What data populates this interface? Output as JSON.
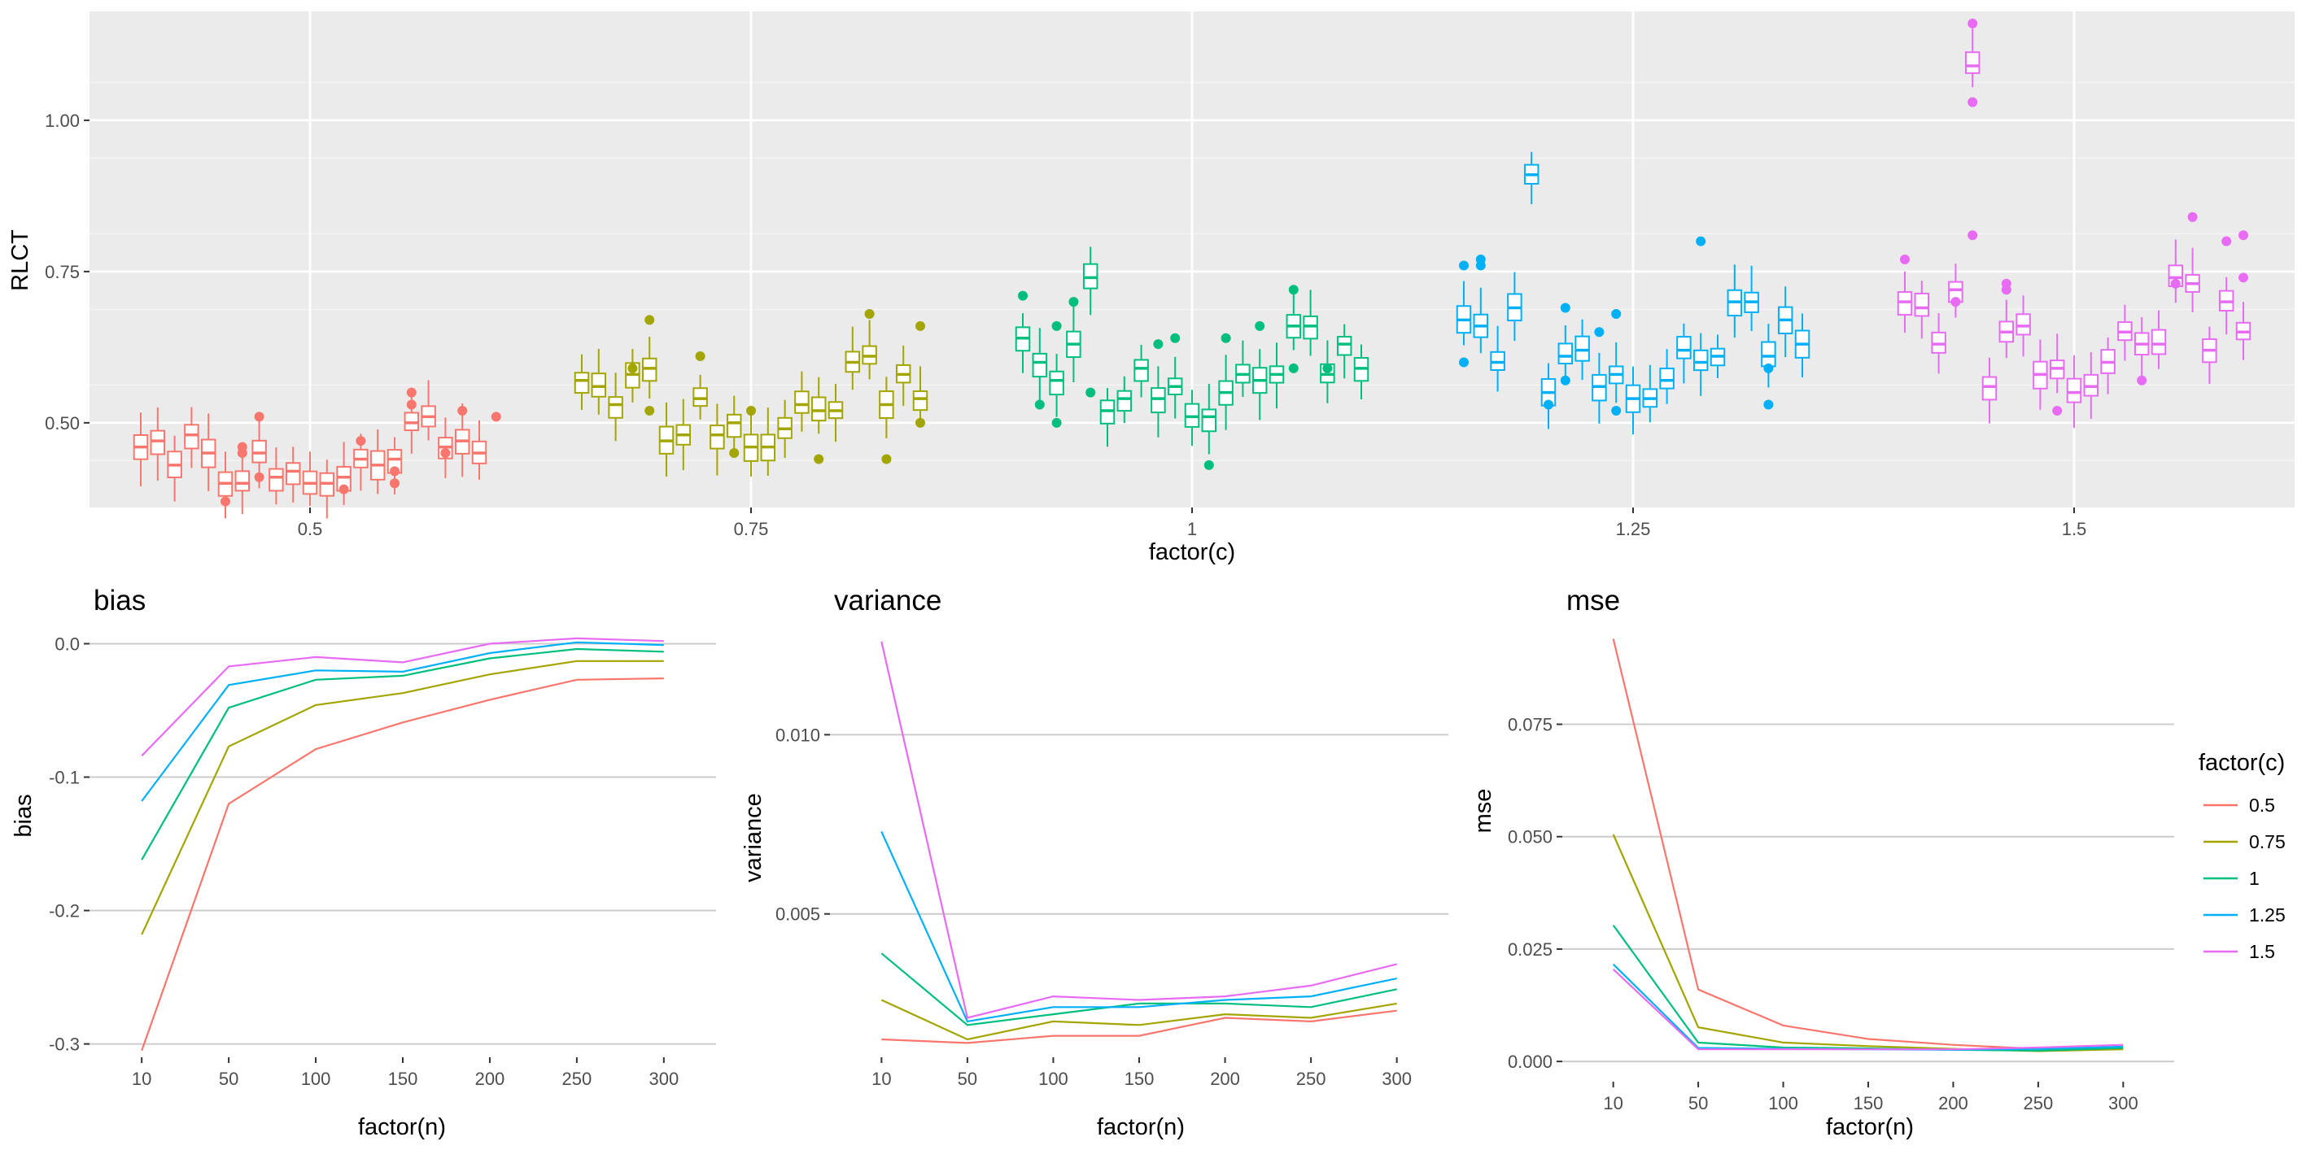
{
  "chart_data": [
    {
      "type": "box",
      "xlabel": "factor(c)",
      "ylabel": "RLCT",
      "categories": [
        "0.5",
        "0.75",
        "1",
        "1.25",
        "1.5"
      ],
      "yticks": [
        "0.50",
        "0.75",
        "1.00"
      ],
      "ylim": [
        0.36,
        1.18
      ],
      "grid": true,
      "colors": [
        "#F8766D",
        "#A3A500",
        "#00BF7D",
        "#00B0F6",
        "#E76BF3"
      ],
      "medians": [
        [
          0.46,
          0.47,
          0.43,
          0.48,
          0.45,
          0.4,
          0.4,
          0.45,
          0.41,
          0.42,
          0.4,
          0.4,
          0.41,
          0.44,
          0.43,
          0.44,
          0.5,
          0.51,
          0.46,
          0.47,
          0.45
        ],
        [
          0.57,
          0.56,
          0.53,
          0.58,
          0.59,
          0.47,
          0.48,
          0.54,
          0.48,
          0.5,
          0.46,
          0.46,
          0.49,
          0.53,
          0.52,
          0.52,
          0.6,
          0.61,
          0.53,
          0.58,
          0.54
        ],
        [
          0.64,
          0.6,
          0.57,
          0.63,
          0.74,
          0.52,
          0.54,
          0.59,
          0.54,
          0.56,
          0.51,
          0.51,
          0.55,
          0.58,
          0.57,
          0.58,
          0.66,
          0.66,
          0.58,
          0.63,
          0.59
        ],
        [
          0.67,
          0.66,
          0.6,
          0.69,
          0.91,
          0.55,
          0.61,
          0.62,
          0.56,
          0.58,
          0.54,
          0.54,
          0.57,
          0.62,
          0.6,
          0.61,
          0.7,
          0.7,
          0.61,
          0.67,
          0.63
        ],
        [
          0.7,
          0.69,
          0.63,
          0.72,
          1.09,
          0.56,
          0.65,
          0.66,
          0.58,
          0.59,
          0.55,
          0.56,
          0.6,
          0.65,
          0.63,
          0.63,
          0.74,
          0.73,
          0.62,
          0.7,
          0.65
        ]
      ],
      "outliers": [
        [
          [
            5,
            0.37
          ],
          [
            6,
            0.46
          ],
          [
            6,
            0.45
          ],
          [
            7,
            0.51
          ],
          [
            7,
            0.41
          ],
          [
            12,
            0.39
          ],
          [
            13,
            0.47
          ],
          [
            15,
            0.4
          ],
          [
            15,
            0.42
          ],
          [
            16,
            0.55
          ],
          [
            16,
            0.53
          ],
          [
            18,
            0.45
          ],
          [
            19,
            0.52
          ],
          [
            21,
            0.51
          ]
        ],
        [
          [
            3,
            0.59
          ],
          [
            4,
            0.52
          ],
          [
            4,
            0.67
          ],
          [
            7,
            0.61
          ],
          [
            9,
            0.45
          ],
          [
            10,
            0.52
          ],
          [
            14,
            0.44
          ],
          [
            17,
            0.68
          ],
          [
            18,
            0.44
          ],
          [
            20,
            0.66
          ],
          [
            20,
            0.5
          ]
        ],
        [
          [
            0,
            0.71
          ],
          [
            1,
            0.53
          ],
          [
            2,
            0.66
          ],
          [
            2,
            0.5
          ],
          [
            3,
            0.7
          ],
          [
            4,
            0.55
          ],
          [
            8,
            0.63
          ],
          [
            9,
            0.64
          ],
          [
            11,
            0.43
          ],
          [
            12,
            0.64
          ],
          [
            14,
            0.66
          ],
          [
            16,
            0.72
          ],
          [
            16,
            0.59
          ],
          [
            18,
            0.59
          ]
        ],
        [
          [
            0,
            0.76
          ],
          [
            0,
            0.6
          ],
          [
            1,
            0.77
          ],
          [
            1,
            0.76
          ],
          [
            5,
            0.53
          ],
          [
            6,
            0.69
          ],
          [
            6,
            0.57
          ],
          [
            8,
            0.65
          ],
          [
            9,
            0.68
          ],
          [
            9,
            0.52
          ],
          [
            14,
            0.8
          ],
          [
            18,
            0.53
          ],
          [
            18,
            0.59
          ]
        ],
        [
          [
            0,
            0.77
          ],
          [
            3,
            0.7
          ],
          [
            4,
            0.81
          ],
          [
            4,
            1.16
          ],
          [
            4,
            1.03
          ],
          [
            6,
            0.73
          ],
          [
            6,
            0.72
          ],
          [
            9,
            0.52
          ],
          [
            14,
            0.57
          ],
          [
            16,
            0.73
          ],
          [
            17,
            0.84
          ],
          [
            19,
            0.8
          ],
          [
            20,
            0.81
          ],
          [
            20,
            0.74
          ]
        ]
      ]
    },
    {
      "type": "line",
      "title": "bias",
      "xlabel": "factor(n)",
      "ylabel": "bias",
      "categories": [
        "10",
        "50",
        "100",
        "150",
        "200",
        "250",
        "300"
      ],
      "yticks": [
        "-0.3",
        "-0.2",
        "-0.1",
        "0.0"
      ],
      "ylim": [
        -0.31,
        0.007
      ],
      "series": [
        {
          "name": "0.5",
          "values": [
            -0.305,
            -0.12,
            -0.079,
            -0.059,
            -0.042,
            -0.027,
            -0.026
          ]
        },
        {
          "name": "0.75",
          "values": [
            -0.218,
            -0.077,
            -0.046,
            -0.037,
            -0.023,
            -0.013,
            -0.013
          ]
        },
        {
          "name": "1",
          "values": [
            -0.162,
            -0.048,
            -0.027,
            -0.024,
            -0.011,
            -0.004,
            -0.006
          ]
        },
        {
          "name": "1.25",
          "values": [
            -0.118,
            -0.031,
            -0.02,
            -0.021,
            -0.007,
            0.001,
            -0.001
          ]
        },
        {
          "name": "1.5",
          "values": [
            -0.084,
            -0.017,
            -0.01,
            -0.014,
            0.0,
            0.004,
            0.002
          ]
        }
      ]
    },
    {
      "type": "line",
      "title": "variance",
      "xlabel": "factor(n)",
      "ylabel": "variance",
      "categories": [
        "10",
        "50",
        "100",
        "150",
        "200",
        "250",
        "300"
      ],
      "yticks": [
        "0.005",
        "0.010"
      ],
      "ylim": [
        0.001,
        0.0128
      ],
      "series": [
        {
          "name": "0.5",
          "values": [
            0.0015,
            0.0014,
            0.0016,
            0.0016,
            0.0021,
            0.002,
            0.0023
          ]
        },
        {
          "name": "0.75",
          "values": [
            0.0026,
            0.0015,
            0.002,
            0.0019,
            0.0022,
            0.0021,
            0.0025
          ]
        },
        {
          "name": "1",
          "values": [
            0.0039,
            0.0019,
            0.0022,
            0.0025,
            0.0025,
            0.0024,
            0.0029
          ]
        },
        {
          "name": "1.25",
          "values": [
            0.0073,
            0.002,
            0.0024,
            0.0024,
            0.0026,
            0.0027,
            0.0032
          ]
        },
        {
          "name": "1.5",
          "values": [
            0.0126,
            0.0021,
            0.0027,
            0.0026,
            0.0027,
            0.003,
            0.0036
          ]
        }
      ]
    },
    {
      "type": "line",
      "title": "mse",
      "xlabel": "factor(n)",
      "ylabel": "mse",
      "categories": [
        "10",
        "50",
        "100",
        "150",
        "200",
        "250",
        "300"
      ],
      "yticks": [
        "0.000",
        "0.025",
        "0.050",
        "0.075"
      ],
      "ylim": [
        -0.0045,
        0.095
      ],
      "series": [
        {
          "name": "0.5",
          "values": [
            0.094,
            0.016,
            0.008,
            0.005,
            0.0037,
            0.0028,
            0.0031
          ]
        },
        {
          "name": "0.75",
          "values": [
            0.0505,
            0.0076,
            0.0042,
            0.0034,
            0.0028,
            0.0023,
            0.0027
          ]
        },
        {
          "name": "1",
          "values": [
            0.0303,
            0.0042,
            0.0031,
            0.0029,
            0.0026,
            0.0024,
            0.003
          ]
        },
        {
          "name": "1.25",
          "values": [
            0.0216,
            0.003,
            0.0028,
            0.0027,
            0.0026,
            0.0028,
            0.0033
          ]
        },
        {
          "name": "1.5",
          "values": [
            0.0205,
            0.0027,
            0.0027,
            0.0027,
            0.0027,
            0.0031,
            0.0037
          ]
        }
      ]
    }
  ],
  "legend": {
    "title": "factor(c)",
    "labels": [
      "0.5",
      "0.75",
      "1",
      "1.25",
      "1.5"
    ],
    "colors": [
      "#F8766D",
      "#A3A500",
      "#00BF7D",
      "#00B0F6",
      "#E76BF3"
    ]
  }
}
